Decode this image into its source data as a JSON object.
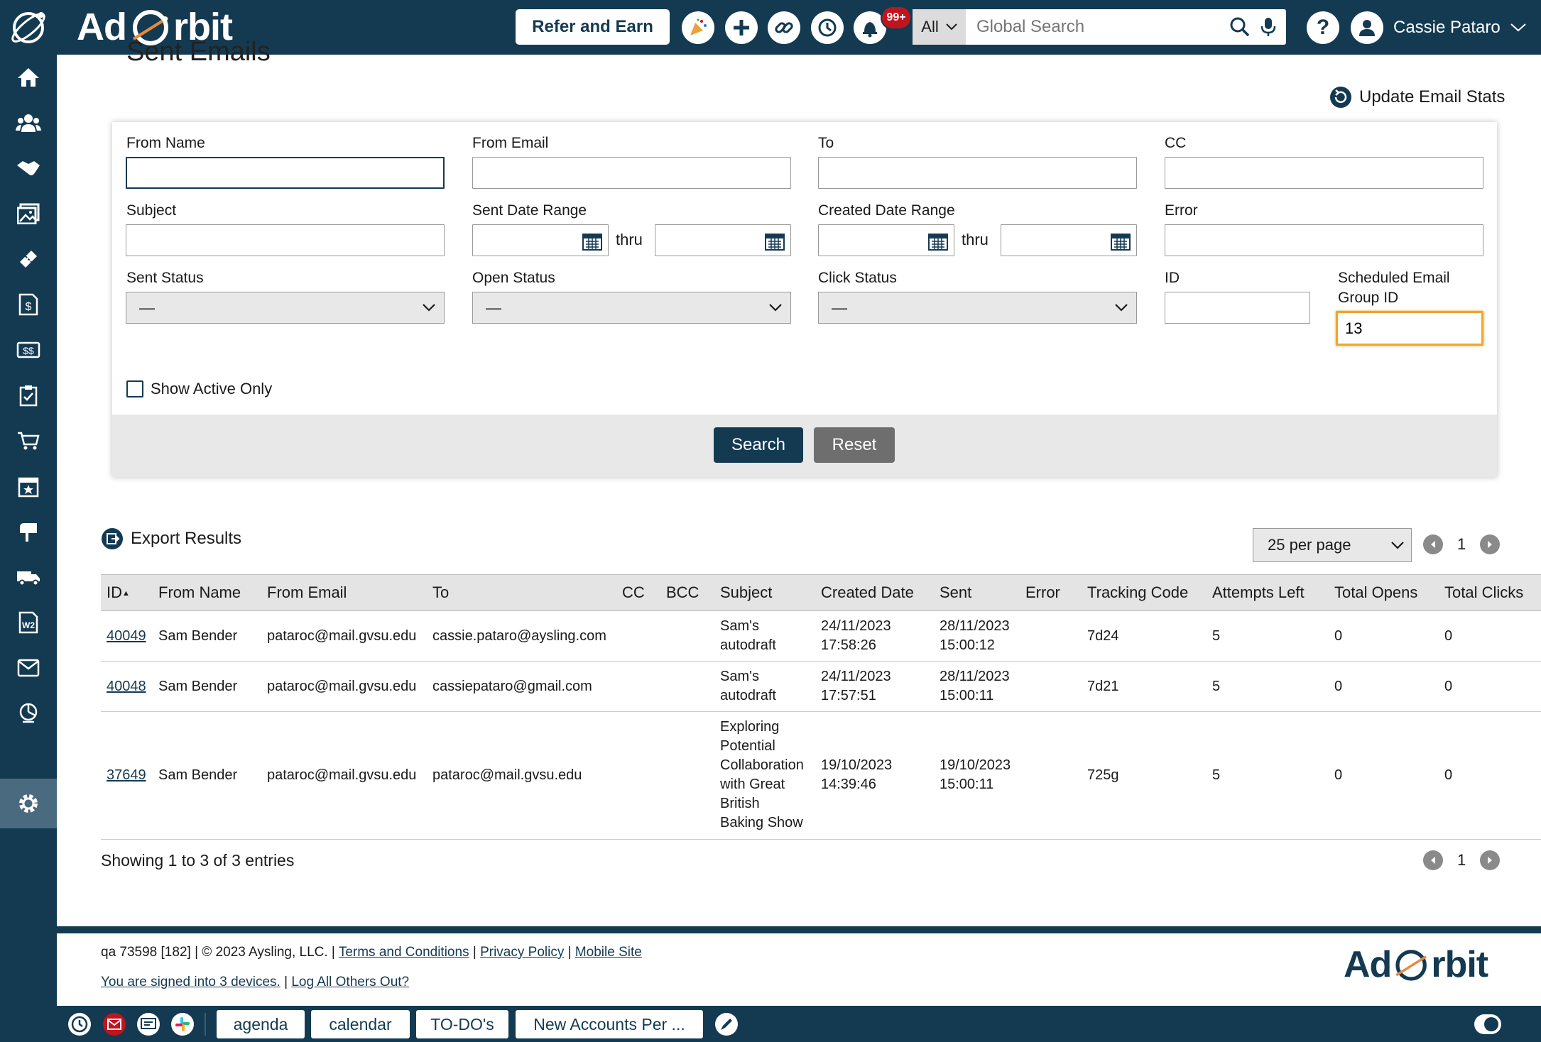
{
  "app": {
    "logo_left": "Ad",
    "logo_right": "rbit"
  },
  "header": {
    "refer_label": "Refer and Earn",
    "notif_count": "99+",
    "search_scope": "All",
    "search_placeholder": "Global Search",
    "user_name": "Cassie Pataro"
  },
  "page": {
    "title": "Sent Emails",
    "update_stats": "Update Email Stats"
  },
  "filters": {
    "from_name": {
      "label": "From Name",
      "value": ""
    },
    "from_email": {
      "label": "From Email",
      "value": ""
    },
    "to": {
      "label": "To",
      "value": ""
    },
    "cc": {
      "label": "CC",
      "value": ""
    },
    "subject": {
      "label": "Subject",
      "value": ""
    },
    "sent_range": {
      "label": "Sent Date Range",
      "thru": "thru"
    },
    "created_range": {
      "label": "Created Date Range",
      "thru": "thru"
    },
    "error": {
      "label": "Error",
      "value": ""
    },
    "sent_status": {
      "label": "Sent Status",
      "value": "—"
    },
    "open_status": {
      "label": "Open Status",
      "value": "—"
    },
    "click_status": {
      "label": "Click Status",
      "value": "—"
    },
    "id": {
      "label": "ID",
      "value": ""
    },
    "sched_group": {
      "label_1": "Scheduled Email",
      "label_2": "Group ID",
      "value": "13"
    },
    "active_only": "Show Active Only",
    "search_btn": "Search",
    "reset_btn": "Reset"
  },
  "results": {
    "export": "Export Results",
    "per_page": "25 per page",
    "page": "1",
    "columns": [
      "ID",
      "From Name",
      "From Email",
      "To",
      "CC",
      "BCC",
      "Subject",
      "Created Date",
      "Sent",
      "Error",
      "Tracking Code",
      "Attempts Left",
      "Total Opens",
      "Total Clicks"
    ],
    "sort_arrow": "▲",
    "rows": [
      {
        "id": "40049",
        "from_name": "Sam Bender",
        "from_email": "pataroc@mail.gvsu.edu",
        "to": "cassie.pataro@aysling.com",
        "cc": "",
        "bcc": "",
        "subject": [
          "Sam's",
          "autodraft"
        ],
        "created": [
          "24/11/2023",
          "17:58:26"
        ],
        "sent": [
          "28/11/2023",
          "15:00:12"
        ],
        "error": "",
        "tracking": "7d24",
        "attempts": "5",
        "opens": "0",
        "clicks": "0"
      },
      {
        "id": "40048",
        "from_name": "Sam Bender",
        "from_email": "pataroc@mail.gvsu.edu",
        "to": "cassiepataro@gmail.com",
        "cc": "",
        "bcc": "",
        "subject": [
          "Sam's",
          "autodraft"
        ],
        "created": [
          "24/11/2023",
          "17:57:51"
        ],
        "sent": [
          "28/11/2023",
          "15:00:11"
        ],
        "error": "",
        "tracking": "7d21",
        "attempts": "5",
        "opens": "0",
        "clicks": "0"
      },
      {
        "id": "37649",
        "from_name": "Sam Bender",
        "from_email": "pataroc@mail.gvsu.edu",
        "to": "pataroc@mail.gvsu.edu",
        "cc": "",
        "bcc": "",
        "subject": [
          "Exploring",
          "Potential",
          "Collaboration",
          "with Great",
          "British",
          "Baking Show"
        ],
        "created": [
          "19/10/2023",
          "14:39:46"
        ],
        "sent": [
          "19/10/2023",
          "15:00:11"
        ],
        "error": "",
        "tracking": "725g",
        "attempts": "5",
        "opens": "0",
        "clicks": "0"
      }
    ],
    "showing": "Showing 1 to 3 of 3 entries"
  },
  "footer": {
    "prefix": "qa 73598 [182] | © 2023 Aysling, LLC. |",
    "terms": "Terms and Conditions",
    "privacy": "Privacy Policy",
    "mobile": "Mobile Site",
    "devices": "You are signed into 3 devices.",
    "logout": "Log All Others Out?",
    "logo_left": "Ad",
    "logo_right": "rbit"
  },
  "bottombar": {
    "tabs": [
      "agenda",
      "calendar",
      "TO-DO's",
      "New Accounts Per ..."
    ]
  },
  "colors": {
    "brand": "#143a52",
    "focus": "#f0a52c",
    "badge": "#c0141f"
  }
}
